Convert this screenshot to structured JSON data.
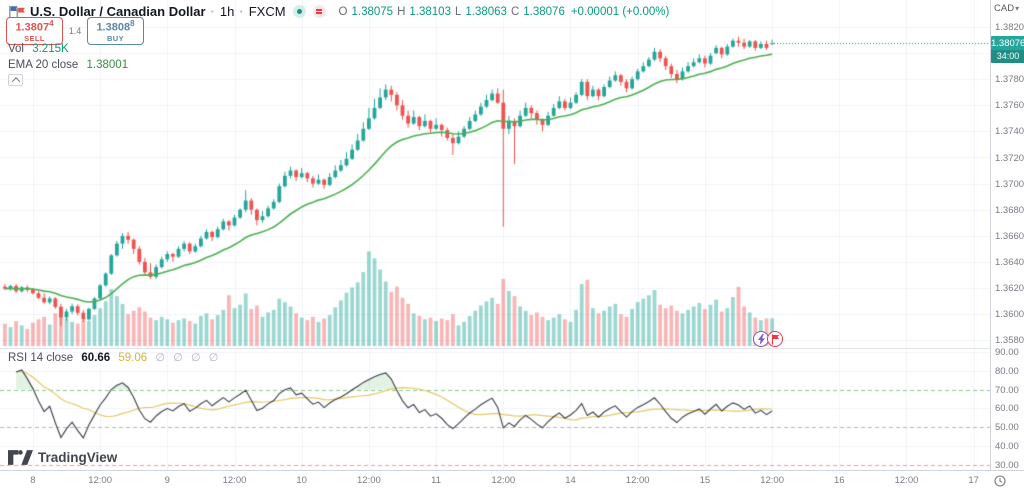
{
  "header": {
    "symbol_title": "U.S. Dollar / Canadian Dollar",
    "separator": "·",
    "interval": "1h",
    "exchange": "FXCM",
    "ohlc": {
      "o_label": "O",
      "o": "1.38075",
      "h_label": "H",
      "h": "1.38103",
      "l_label": "L",
      "l": "1.38063",
      "c_label": "C",
      "c": "1.38076",
      "change": "+0.00001 (+0.00%)"
    }
  },
  "trade_panel": {
    "sell_price_main": "1.3807",
    "sell_price_sup": "4",
    "sell_label": "SELL",
    "spread": "1.4",
    "buy_price_main": "1.3808",
    "buy_price_sup": "8",
    "buy_label": "BUY"
  },
  "indicators": {
    "volume": {
      "label": "Vol",
      "value": "3.215K"
    },
    "ema": {
      "label": "EMA 20 close",
      "value": "1.38001"
    },
    "rsi": {
      "label": "RSI 14 close",
      "value": "60.66",
      "ma_value": "59.06",
      "empty_values": [
        "∅",
        "∅",
        "∅",
        "∅"
      ]
    }
  },
  "price_axis": {
    "currency": "CAD",
    "ticks": [
      "1.38200",
      "1.37800",
      "1.37600",
      "1.37400",
      "1.37200",
      "1.37000",
      "1.36800",
      "1.36600",
      "1.36400",
      "1.36200",
      "1.36000",
      "1.35800"
    ],
    "price_badge": {
      "price": "1.38076",
      "countdown": "34:00"
    }
  },
  "rsi_axis": {
    "ticks": [
      "90.00",
      "80.00",
      "70.00",
      "60.00",
      "50.00",
      "40.00",
      "30.00"
    ]
  },
  "time_axis": {
    "ticks": [
      {
        "label": "8",
        "idx": 5
      },
      {
        "label": "12:00",
        "idx": 17
      },
      {
        "label": "9",
        "idx": 29
      },
      {
        "label": "12:00",
        "idx": 41
      },
      {
        "label": "10",
        "idx": 53
      },
      {
        "label": "12:00",
        "idx": 65
      },
      {
        "label": "11",
        "idx": 77
      },
      {
        "label": "12:00",
        "idx": 89
      },
      {
        "label": "14",
        "idx": 101
      },
      {
        "label": "12:00",
        "idx": 113
      },
      {
        "label": "15",
        "idx": 125
      },
      {
        "label": "12:00",
        "idx": 137
      },
      {
        "label": "16",
        "idx": 149
      },
      {
        "label": "12:00",
        "idx": 161
      },
      {
        "label": "17",
        "idx": 173
      }
    ]
  },
  "watermark": {
    "text": "TradingView"
  },
  "colors": {
    "up": "#26A69A",
    "down": "#EF5350",
    "vol_up": "rgba(38,166,154,0.45)",
    "vol_down": "rgba(239,83,80,0.42)",
    "ema": "#4CAF50",
    "rsi_line": "#3A3E4A",
    "rsi_ma": "#E2C963",
    "rsi_upper_band": "rgba(76,175,80,0.65)",
    "rsi_mid_band": "rgba(120,123,134,0.55)",
    "rsi_lower_band": "rgba(239,83,80,0.6)",
    "rsi_fill": "rgba(76,175,80,0.16)",
    "grid": "#F0F3FA",
    "badge": "#26A69A",
    "sell": "#E0544F",
    "buy": "#5B87A8",
    "price_line": "#089981"
  },
  "chart_data": {
    "type": "candlestick",
    "title": "U.S. Dollar / Canadian Dollar · 1h · FXCM",
    "ema_period": 20,
    "rsi_period": 14,
    "rsi_ma_period": 14,
    "rsi_levels": {
      "upper": 70,
      "middle": 50,
      "lower": 30
    },
    "price_grid": {
      "min": 1.358,
      "max": 1.382,
      "step": 0.002
    },
    "last_price": 1.38076,
    "candles": [
      [
        1.3621,
        1.3623,
        1.36185,
        1.36195,
        2.6
      ],
      [
        1.36195,
        1.36225,
        1.3618,
        1.36215,
        2.2
      ],
      [
        1.36215,
        1.3623,
        1.3616,
        1.36175,
        2.9
      ],
      [
        1.36175,
        1.36215,
        1.36165,
        1.36205,
        2.4
      ],
      [
        1.36205,
        1.3622,
        1.3617,
        1.36185,
        2.0
      ],
      [
        1.36185,
        1.362,
        1.3615,
        1.3616,
        2.7
      ],
      [
        1.3616,
        1.36175,
        1.36115,
        1.36125,
        3.1
      ],
      [
        1.36125,
        1.3616,
        1.3608,
        1.3609,
        3.4
      ],
      [
        1.3609,
        1.36135,
        1.36075,
        1.3612,
        2.5
      ],
      [
        1.3612,
        1.3613,
        1.3604,
        1.36055,
        3.8
      ],
      [
        1.36055,
        1.3608,
        1.3591,
        1.35975,
        4.6
      ],
      [
        1.35975,
        1.3604,
        1.3595,
        1.3602,
        3.2
      ],
      [
        1.3602,
        1.3608,
        1.36,
        1.3606,
        2.8
      ],
      [
        1.3606,
        1.36075,
        1.3599,
        1.3601,
        2.6
      ],
      [
        1.3601,
        1.3603,
        1.3594,
        1.3596,
        3.0
      ],
      [
        1.3596,
        1.3605,
        1.3595,
        1.3604,
        2.9
      ],
      [
        1.3604,
        1.3613,
        1.3603,
        1.3612,
        3.6
      ],
      [
        1.3612,
        1.3623,
        1.3611,
        1.3622,
        4.4
      ],
      [
        1.3622,
        1.3632,
        1.3621,
        1.3631,
        5.2
      ],
      [
        1.3631,
        1.3646,
        1.363,
        1.3645,
        6.6
      ],
      [
        1.3645,
        1.3656,
        1.3644,
        1.3654,
        5.8
      ],
      [
        1.3654,
        1.3662,
        1.365,
        1.366,
        4.9
      ],
      [
        1.366,
        1.3663,
        1.3654,
        1.3657,
        3.7
      ],
      [
        1.3657,
        1.3658,
        1.3646,
        1.365,
        4.1
      ],
      [
        1.365,
        1.3652,
        1.3638,
        1.364,
        4.5
      ],
      [
        1.364,
        1.3643,
        1.363,
        1.3632,
        4.0
      ],
      [
        1.3632,
        1.3639,
        1.3627,
        1.36285,
        3.3
      ],
      [
        1.36285,
        1.3638,
        1.3627,
        1.3636,
        3.0
      ],
      [
        1.3636,
        1.3644,
        1.3635,
        1.3642,
        3.4
      ],
      [
        1.3642,
        1.3648,
        1.364,
        1.3646,
        3.1
      ],
      [
        1.3646,
        1.3647,
        1.364,
        1.3644,
        2.7
      ],
      [
        1.3644,
        1.3652,
        1.3643,
        1.365,
        3.0
      ],
      [
        1.365,
        1.3656,
        1.3648,
        1.3654,
        3.2
      ],
      [
        1.3654,
        1.3655,
        1.3646,
        1.3648,
        2.9
      ],
      [
        1.3648,
        1.3654,
        1.3647,
        1.3652,
        2.6
      ],
      [
        1.3652,
        1.366,
        1.3651,
        1.3658,
        3.5
      ],
      [
        1.3658,
        1.3665,
        1.3657,
        1.3663,
        3.8
      ],
      [
        1.3663,
        1.3664,
        1.3656,
        1.3659,
        3.1
      ],
      [
        1.3659,
        1.3667,
        1.3658,
        1.3665,
        3.6
      ],
      [
        1.3665,
        1.3673,
        1.3664,
        1.3671,
        4.2
      ],
      [
        1.3671,
        1.3672,
        1.3664,
        1.3668,
        5.9
      ],
      [
        1.3668,
        1.3676,
        1.3667,
        1.3674,
        4.4
      ],
      [
        1.3674,
        1.3681,
        1.3673,
        1.368,
        4.8
      ],
      [
        1.368,
        1.3695,
        1.3678,
        1.3687,
        6.1
      ],
      [
        1.3687,
        1.3689,
        1.3676,
        1.368,
        4.3
      ],
      [
        1.368,
        1.3681,
        1.3668,
        1.3672,
        4.7
      ],
      [
        1.3672,
        1.3679,
        1.367,
        1.3675,
        3.4
      ],
      [
        1.3675,
        1.3683,
        1.3674,
        1.3681,
        3.9
      ],
      [
        1.3681,
        1.3688,
        1.368,
        1.3686,
        4.2
      ],
      [
        1.3686,
        1.37,
        1.3685,
        1.3698,
        5.5
      ],
      [
        1.3698,
        1.3709,
        1.3697,
        1.3706,
        5.1
      ],
      [
        1.3706,
        1.3713,
        1.3704,
        1.371,
        4.6
      ],
      [
        1.371,
        1.3711,
        1.3702,
        1.3705,
        3.8
      ],
      [
        1.3705,
        1.3712,
        1.3704,
        1.3708,
        3.3
      ],
      [
        1.3708,
        1.3709,
        1.3701,
        1.3704,
        3.0
      ],
      [
        1.3704,
        1.3706,
        1.3697,
        1.37,
        3.4
      ],
      [
        1.37,
        1.3707,
        1.3699,
        1.3703,
        2.8
      ],
      [
        1.3703,
        1.3704,
        1.3696,
        1.3699,
        3.2
      ],
      [
        1.3699,
        1.3708,
        1.3698,
        1.3705,
        3.6
      ],
      [
        1.3705,
        1.3714,
        1.3704,
        1.371,
        4.5
      ],
      [
        1.371,
        1.3718,
        1.3709,
        1.3714,
        5.3
      ],
      [
        1.3714,
        1.3724,
        1.3713,
        1.3719,
        6.2
      ],
      [
        1.3719,
        1.373,
        1.3718,
        1.3726,
        6.8
      ],
      [
        1.3726,
        1.3738,
        1.3725,
        1.3733,
        7.4
      ],
      [
        1.3733,
        1.3747,
        1.3732,
        1.3742,
        8.6
      ],
      [
        1.3742,
        1.3758,
        1.3741,
        1.375,
        11.0
      ],
      [
        1.375,
        1.3765,
        1.3749,
        1.3758,
        10.2
      ],
      [
        1.3758,
        1.3773,
        1.3757,
        1.3766,
        8.9
      ],
      [
        1.3766,
        1.3776,
        1.3764,
        1.3772,
        7.5
      ],
      [
        1.3772,
        1.3775,
        1.3763,
        1.3768,
        6.3
      ],
      [
        1.3768,
        1.377,
        1.3756,
        1.376,
        6.9
      ],
      [
        1.376,
        1.3764,
        1.3749,
        1.3752,
        5.6
      ],
      [
        1.3752,
        1.3756,
        1.3743,
        1.3746,
        4.9
      ],
      [
        1.3746,
        1.3756,
        1.3745,
        1.3751,
        3.8
      ],
      [
        1.3751,
        1.3752,
        1.3741,
        1.3744,
        3.5
      ],
      [
        1.3744,
        1.3753,
        1.3743,
        1.3748,
        3.1
      ],
      [
        1.3748,
        1.3749,
        1.3739,
        1.3742,
        3.3
      ],
      [
        1.3742,
        1.375,
        1.3741,
        1.3745,
        2.9
      ],
      [
        1.3745,
        1.3746,
        1.3736,
        1.3741,
        3.2
      ],
      [
        1.3741,
        1.3743,
        1.3733,
        1.3735,
        3.0
      ],
      [
        1.3735,
        1.3738,
        1.3722,
        1.3731,
        3.7
      ],
      [
        1.3731,
        1.374,
        1.373,
        1.3736,
        2.4
      ],
      [
        1.3736,
        1.3744,
        1.3735,
        1.3742,
        2.8
      ],
      [
        1.3742,
        1.3751,
        1.3741,
        1.3748,
        3.5
      ],
      [
        1.3748,
        1.3756,
        1.3747,
        1.3753,
        4.1
      ],
      [
        1.3753,
        1.3762,
        1.3752,
        1.3759,
        4.7
      ],
      [
        1.3759,
        1.3768,
        1.3758,
        1.3764,
        5.2
      ],
      [
        1.3764,
        1.3772,
        1.3763,
        1.3769,
        5.6
      ],
      [
        1.3769,
        1.3773,
        1.3761,
        1.3762,
        4.9
      ],
      [
        1.3762,
        1.3772,
        1.3667,
        1.3742,
        7.8
      ],
      [
        1.3742,
        1.3752,
        1.3738,
        1.3748,
        6.4
      ],
      [
        1.3748,
        1.375,
        1.3715,
        1.3744,
        5.8
      ],
      [
        1.3744,
        1.3756,
        1.3743,
        1.3752,
        4.6
      ],
      [
        1.3752,
        1.3762,
        1.3751,
        1.3758,
        4.1
      ],
      [
        1.3758,
        1.376,
        1.375,
        1.3754,
        3.6
      ],
      [
        1.3754,
        1.3756,
        1.3745,
        1.3749,
        3.9
      ],
      [
        1.3749,
        1.375,
        1.374,
        1.3745,
        3.4
      ],
      [
        1.3745,
        1.3755,
        1.3744,
        1.3752,
        3.0
      ],
      [
        1.3752,
        1.3761,
        1.3751,
        1.3758,
        3.3
      ],
      [
        1.3758,
        1.3767,
        1.3757,
        1.3763,
        3.7
      ],
      [
        1.3763,
        1.3765,
        1.3756,
        1.3758,
        3.1
      ],
      [
        1.3758,
        1.3766,
        1.3757,
        1.3762,
        2.8
      ],
      [
        1.3762,
        1.377,
        1.3761,
        1.3768,
        4.2
      ],
      [
        1.3768,
        1.378,
        1.3767,
        1.3778,
        7.2
      ],
      [
        1.3778,
        1.378,
        1.3764,
        1.3767,
        7.7
      ],
      [
        1.3767,
        1.3775,
        1.3766,
        1.3772,
        4.4
      ],
      [
        1.3772,
        1.3773,
        1.3764,
        1.3767,
        3.8
      ],
      [
        1.3767,
        1.3776,
        1.3766,
        1.3774,
        4.1
      ],
      [
        1.3774,
        1.3782,
        1.3773,
        1.3779,
        4.6
      ],
      [
        1.3779,
        1.3786,
        1.3778,
        1.3783,
        4.9
      ],
      [
        1.3783,
        1.3784,
        1.3775,
        1.3778,
        3.7
      ],
      [
        1.3778,
        1.378,
        1.377,
        1.3773,
        3.4
      ],
      [
        1.3773,
        1.3782,
        1.3772,
        1.378,
        4.3
      ],
      [
        1.378,
        1.3788,
        1.3779,
        1.3786,
        5.1
      ],
      [
        1.3786,
        1.3793,
        1.3785,
        1.379,
        5.5
      ],
      [
        1.379,
        1.3797,
        1.3789,
        1.3795,
        5.9
      ],
      [
        1.3795,
        1.3804,
        1.3794,
        1.3801,
        6.5
      ],
      [
        1.3801,
        1.3803,
        1.3793,
        1.3796,
        4.8
      ],
      [
        1.3796,
        1.3798,
        1.3787,
        1.379,
        4.4
      ],
      [
        1.379,
        1.3792,
        1.3781,
        1.3784,
        4.7
      ],
      [
        1.3784,
        1.3787,
        1.3777,
        1.378,
        4.1
      ],
      [
        1.378,
        1.3789,
        1.3779,
        1.3786,
        3.8
      ],
      [
        1.3786,
        1.3793,
        1.3785,
        1.379,
        4.2
      ],
      [
        1.379,
        1.3796,
        1.3789,
        1.3793,
        4.6
      ],
      [
        1.3793,
        1.3799,
        1.3792,
        1.3796,
        5.0
      ],
      [
        1.3796,
        1.3798,
        1.3789,
        1.3792,
        4.3
      ],
      [
        1.3792,
        1.38,
        1.3791,
        1.3798,
        4.8
      ],
      [
        1.38,
        1.3806,
        1.3799,
        1.3804,
        5.4
      ],
      [
        1.3804,
        1.3805,
        1.3796,
        1.3799,
        4.0
      ],
      [
        1.3799,
        1.3807,
        1.3798,
        1.3805,
        4.4
      ],
      [
        1.3805,
        1.3811,
        1.3804,
        1.38095,
        5.7
      ],
      [
        1.38095,
        1.38125,
        1.3805,
        1.3808,
        6.9
      ],
      [
        1.3808,
        1.3811,
        1.3803,
        1.3805,
        4.6
      ],
      [
        1.3805,
        1.381,
        1.3804,
        1.3809,
        3.9
      ],
      [
        1.3809,
        1.381,
        1.3802,
        1.3804,
        3.3
      ],
      [
        1.3804,
        1.3809,
        1.3803,
        1.3807,
        3.0
      ],
      [
        1.3807,
        1.38095,
        1.38025,
        1.3804,
        3.2
      ],
      [
        1.38075,
        1.38103,
        1.38063,
        1.38076,
        3.215
      ]
    ]
  }
}
